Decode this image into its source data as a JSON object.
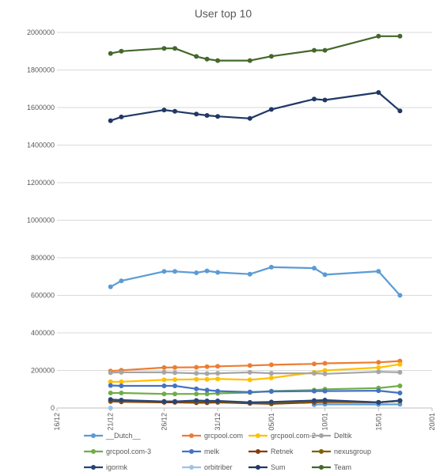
{
  "chart_data": {
    "type": "line",
    "title": "User top 10",
    "xlabel": "",
    "ylabel": "",
    "x_axis_type": "date",
    "year_start": 2017,
    "xlim": [
      "2017-12-16",
      "2018-01-20"
    ],
    "x_ticks": [
      "16/12",
      "21/12",
      "26/12",
      "31/12",
      "05/01",
      "10/01",
      "15/01",
      "20/01"
    ],
    "ylim": [
      0,
      2000000
    ],
    "y_ticks": [
      "0",
      "200000",
      "400000",
      "600000",
      "800000",
      "1000000",
      "1200000",
      "1400000",
      "1600000",
      "1800000",
      "2000000"
    ],
    "grid": "horizontal",
    "legend_position": "bottom",
    "x": [
      "2017-12-21",
      "2017-12-22",
      "2017-12-26",
      "2017-12-27",
      "2017-12-29",
      "2017-12-30",
      "2017-12-31",
      "2018-01-03",
      "2018-01-05",
      "2018-01-09",
      "2018-01-10",
      "2018-01-15",
      "2018-01-17"
    ],
    "series": [
      {
        "name": "__Dutch__",
        "color": "#5b9bd5",
        "values": [
          null,
          null,
          null,
          null,
          null,
          null,
          null,
          null,
          null,
          18000,
          20000,
          19000,
          20000
        ]
      },
      {
        "name": "grcpool.com",
        "color": "#ed7d31",
        "values": [
          197000,
          201000,
          215000,
          216000,
          217000,
          220000,
          222000,
          226000,
          230000,
          235000,
          238000,
          243000,
          250000
        ]
      },
      {
        "name": "grcpool.com-2",
        "color": "#ffc000",
        "values": [
          140000,
          140000,
          150000,
          151000,
          153000,
          153000,
          155000,
          150000,
          160000,
          190000,
          200000,
          215000,
          233000
        ]
      },
      {
        "name": "Deltik",
        "color": "#a5a5a5",
        "values": [
          188000,
          190000,
          190000,
          188000,
          185000,
          183000,
          185000,
          190000,
          185000,
          185000,
          182000,
          193000,
          190000
        ]
      },
      {
        "name": "grcpool.com-3",
        "color": "#70ad47",
        "values": [
          80000,
          80000,
          75000,
          75000,
          75000,
          75000,
          78000,
          82000,
          90000,
          95000,
          100000,
          106000,
          118000
        ]
      },
      {
        "name": "melk",
        "color": "#4472c4",
        "values": [
          120000,
          118000,
          118000,
          118000,
          102000,
          95000,
          90000,
          85000,
          88000,
          90000,
          90000,
          92000,
          80000
        ]
      },
      {
        "name": "Retnek",
        "color": "#843c0c",
        "values": [
          35000,
          33000,
          30000,
          30000,
          28000,
          28000,
          30000,
          25000,
          22000,
          30000,
          32000,
          30000,
          38000
        ]
      },
      {
        "name": "nexusgroup",
        "color": "#806000",
        "values": [
          40000,
          38000,
          35000,
          35000,
          35000,
          35000,
          35000,
          28000,
          28000,
          35000,
          38000,
          30000,
          38000
        ]
      },
      {
        "name": "igormk",
        "color": "#264478",
        "values": [
          45000,
          42000,
          35000,
          35000,
          40000,
          38000,
          38000,
          30000,
          32000,
          40000,
          42000,
          30000,
          40000
        ]
      },
      {
        "name": "orbitriber",
        "color": "#9dc3e6",
        "values": [
          0,
          null,
          null,
          null,
          null,
          null,
          null,
          null,
          null,
          null,
          null,
          null,
          null
        ]
      },
      {
        "name": "Sum",
        "color": "#203864",
        "values": [
          1530000,
          1550000,
          1587000,
          1580000,
          1565000,
          1558000,
          1553000,
          1542000,
          1590000,
          1645000,
          1640000,
          1680000,
          1582000
        ]
      },
      {
        "name": "Team",
        "color": "#43682b",
        "values": [
          1888000,
          1900000,
          1915000,
          1915000,
          1872000,
          1858000,
          1850000,
          1850000,
          1873000,
          1905000,
          1905000,
          1980000,
          1980000
        ]
      }
    ],
    "overlay_series": {
      "name": "__Dutch__ (upper)",
      "color": "#5b9bd5",
      "values": [
        645000,
        677000,
        727000,
        727000,
        720000,
        730000,
        722000,
        713000,
        750000,
        745000,
        710000,
        728000,
        600000
      ]
    }
  }
}
